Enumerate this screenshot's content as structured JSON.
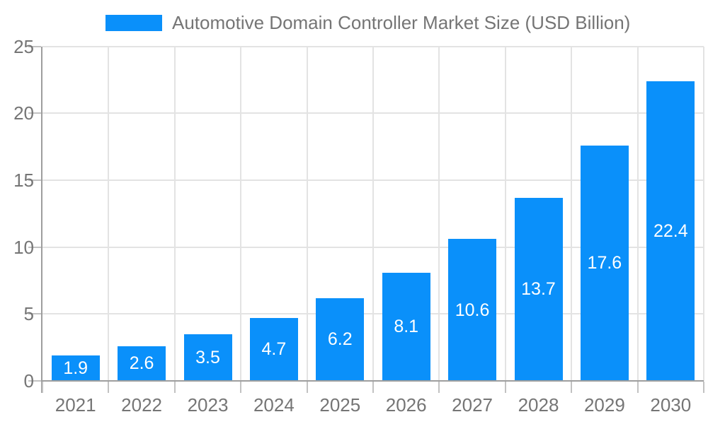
{
  "chart_data": {
    "type": "bar",
    "title": "Automotive Domain Controller Market Size (USD Billion)",
    "categories": [
      "2021",
      "2022",
      "2023",
      "2024",
      "2025",
      "2026",
      "2027",
      "2028",
      "2029",
      "2030"
    ],
    "values": [
      1.9,
      2.6,
      3.5,
      4.7,
      6.2,
      8.1,
      10.6,
      13.7,
      17.6,
      22.4
    ],
    "value_label_format": "one-decimal",
    "value_labels_position": "inside-center",
    "xlabel": "",
    "ylabel": "",
    "ylim": [
      0,
      25
    ],
    "yticks": [
      0,
      5,
      10,
      15,
      20,
      25
    ],
    "grid": true,
    "legend_position": "top",
    "colors": {
      "bar": "#0a90fa",
      "grid": "#e3e3e3",
      "axis": "#9e9e9e",
      "tick": "#c2c2c2",
      "text": "#757575",
      "value_label": "#ffffff"
    }
  },
  "legend": {
    "label": "Automotive Domain Controller Market Size (USD Billion)",
    "swatch_color": "#0a90fa"
  }
}
